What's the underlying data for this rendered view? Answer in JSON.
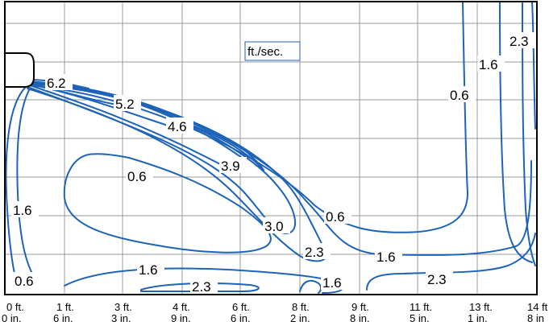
{
  "chart_data": {
    "type": "contour",
    "unit_label": "ft./sec.",
    "xlabel": "",
    "ylabel": "",
    "x_ticks": [
      {
        "ft": "0 ft.",
        "in": "0 in."
      },
      {
        "ft": "1 ft.",
        "in": "6 in."
      },
      {
        "ft": "3 ft.",
        "in": "3 in."
      },
      {
        "ft": "4 ft.",
        "in": "9 in."
      },
      {
        "ft": "6 ft.",
        "in": "6 in."
      },
      {
        "ft": "8 ft.",
        "in": "2 in."
      },
      {
        "ft": "9 ft.",
        "in": "8 in."
      },
      {
        "ft": "11 ft.",
        "in": "5 in."
      },
      {
        "ft": "13 ft.",
        "in": "1 in."
      },
      {
        "ft": "14 ft",
        "in": "8 in"
      }
    ],
    "contour_levels": [
      0.6,
      1.6,
      2.3,
      3.0,
      3.9,
      4.6,
      5.2,
      6.2
    ],
    "contour_labels": [
      "6.2",
      "5.2",
      "4.6",
      "3.9",
      "3.0",
      "2.3",
      "0.6",
      "1.6",
      "0.6",
      "1.6",
      "0.6",
      "1.6",
      "2.3",
      "1.6",
      "2.3",
      "0.6",
      "1.6",
      "2.3"
    ],
    "grid": true
  }
}
